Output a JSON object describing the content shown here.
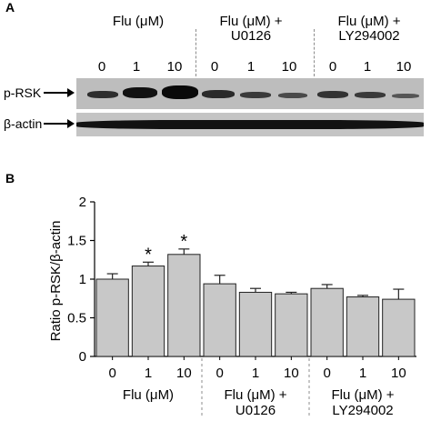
{
  "panel_a": {
    "label": "A",
    "group_headers": [
      {
        "line1": "Flu (μM)",
        "line2": ""
      },
      {
        "line1": "Flu (μM) +",
        "line2": "U0126"
      },
      {
        "line1": "Flu (μM) +",
        "line2": "LY294002"
      }
    ],
    "lane_labels": [
      "0",
      "1",
      "10",
      "0",
      "1",
      "10",
      "0",
      "1",
      "10"
    ],
    "row_labels": [
      "p-RSK",
      "β-actin"
    ],
    "arrow": "→"
  },
  "panel_b": {
    "label": "B"
  },
  "chart_data": {
    "type": "bar",
    "ylabel": "Ratio p-RSK/β-actin",
    "ylim": [
      0,
      2
    ],
    "yticks": [
      "0",
      "0.5",
      "1",
      "1.5",
      "2"
    ],
    "categories": [
      "0",
      "1",
      "10",
      "0",
      "1",
      "10",
      "0",
      "1",
      "10"
    ],
    "values": [
      1.0,
      1.17,
      1.32,
      0.94,
      0.83,
      0.81,
      0.88,
      0.77,
      0.74
    ],
    "errors": [
      0.07,
      0.05,
      0.07,
      0.11,
      0.05,
      0.02,
      0.05,
      0.02,
      0.13
    ],
    "significant": [
      false,
      true,
      true,
      false,
      false,
      false,
      false,
      false,
      false
    ],
    "significance_marker": "*",
    "groups": [
      {
        "line1": "Flu (μM)",
        "line2": ""
      },
      {
        "line1": "Flu (μM) +",
        "line2": "U0126"
      },
      {
        "line1": "Flu (μM) +",
        "line2": "LY294002"
      }
    ],
    "bar_color": "#c8c8c8",
    "grid": false,
    "legend": "none"
  }
}
